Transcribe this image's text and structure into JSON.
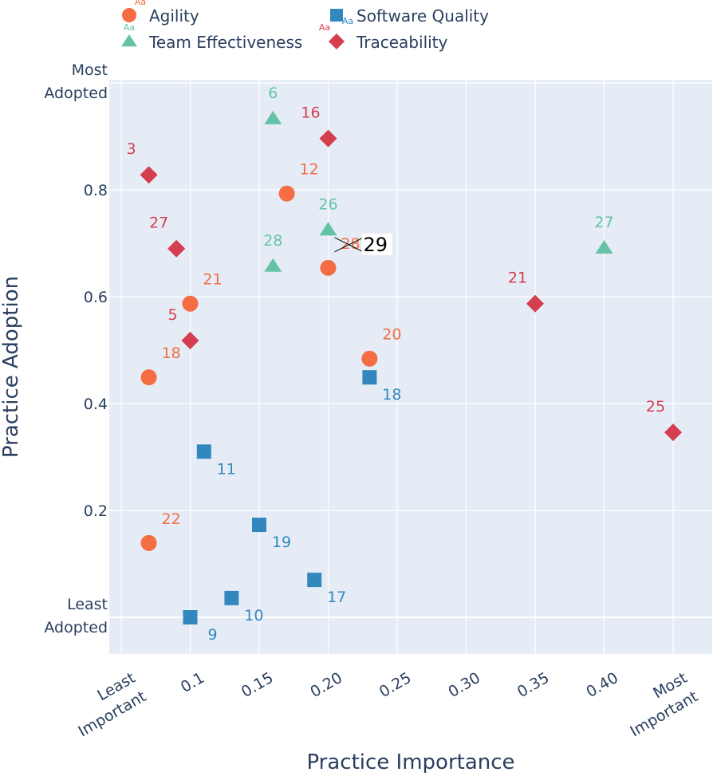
{
  "chart_data": {
    "type": "scatter",
    "xlabel": "Practice Importance",
    "ylabel": "Practice Adoption",
    "xlim": [
      0.03,
      0.48
    ],
    "ylim": [
      -0.07,
      1.01
    ],
    "grid": true,
    "legend_position": "top",
    "x_ticks": [
      {
        "value": 0.05,
        "label": [
          "Least",
          "Important"
        ]
      },
      {
        "value": 0.1,
        "label": [
          "0.1"
        ]
      },
      {
        "value": 0.15,
        "label": [
          "0.15"
        ]
      },
      {
        "value": 0.2,
        "label": [
          "0.20"
        ]
      },
      {
        "value": 0.25,
        "label": [
          "0.25"
        ]
      },
      {
        "value": 0.3,
        "label": [
          "0.30"
        ]
      },
      {
        "value": 0.35,
        "label": [
          "0.35"
        ]
      },
      {
        "value": 0.4,
        "label": [
          "0.40"
        ]
      },
      {
        "value": 0.45,
        "label": [
          "Most",
          "Important"
        ]
      }
    ],
    "y_ticks": [
      {
        "value": 0.0,
        "label": [
          "Least",
          "Adopted"
        ]
      },
      {
        "value": 0.2,
        "label": [
          "0.2"
        ]
      },
      {
        "value": 0.4,
        "label": [
          "0.4"
        ]
      },
      {
        "value": 0.6,
        "label": [
          "0.6"
        ]
      },
      {
        "value": 0.8,
        "label": [
          "0.8"
        ]
      },
      {
        "value": 1.0,
        "label": [
          "Most",
          "Adopted"
        ]
      }
    ],
    "series": [
      {
        "name": "Agility",
        "marker": "circle",
        "color": "#f46d43",
        "label_pos": "top-right",
        "points": [
          {
            "x": 0.07,
            "y": 0.449,
            "label": "18"
          },
          {
            "x": 0.07,
            "y": 0.139,
            "label": "22"
          },
          {
            "x": 0.1,
            "y": 0.587,
            "label": "21"
          },
          {
            "x": 0.17,
            "y": 0.793,
            "label": "12"
          },
          {
            "x": 0.2,
            "y": 0.654,
            "label": "28",
            "edited_label": "29"
          },
          {
            "x": 0.23,
            "y": 0.484,
            "label": "20"
          }
        ]
      },
      {
        "name": "Software Quality",
        "marker": "square",
        "color": "#3288bd",
        "label_pos": "bottom-right",
        "points": [
          {
            "x": 0.23,
            "y": 0.449,
            "label": "18"
          },
          {
            "x": 0.11,
            "y": 0.31,
            "label": "11"
          },
          {
            "x": 0.15,
            "y": 0.173,
            "label": "19"
          },
          {
            "x": 0.19,
            "y": 0.07,
            "label": "17"
          },
          {
            "x": 0.13,
            "y": 0.036,
            "label": "10"
          },
          {
            "x": 0.1,
            "y": 0.0,
            "label": "9"
          }
        ]
      },
      {
        "name": "Team Effectiveness",
        "marker": "triangle-up",
        "color": "#66c2a5",
        "label_pos": "top-center",
        "points": [
          {
            "x": 0.16,
            "y": 0.933,
            "label": "6"
          },
          {
            "x": 0.2,
            "y": 0.725,
            "label": "26"
          },
          {
            "x": 0.16,
            "y": 0.657,
            "label": "28"
          },
          {
            "x": 0.4,
            "y": 0.691,
            "label": "27"
          }
        ]
      },
      {
        "name": "Traceability",
        "marker": "diamond",
        "color": "#d53e4f",
        "label_pos": "top-left",
        "points": [
          {
            "x": 0.07,
            "y": 0.828,
            "label": "3"
          },
          {
            "x": 0.2,
            "y": 0.896,
            "label": "16"
          },
          {
            "x": 0.09,
            "y": 0.69,
            "label": "27"
          },
          {
            "x": 0.1,
            "y": 0.518,
            "label": "5"
          },
          {
            "x": 0.35,
            "y": 0.587,
            "label": "21"
          },
          {
            "x": 0.45,
            "y": 0.346,
            "label": "25"
          }
        ]
      }
    ],
    "legend_badge": "Aa"
  }
}
